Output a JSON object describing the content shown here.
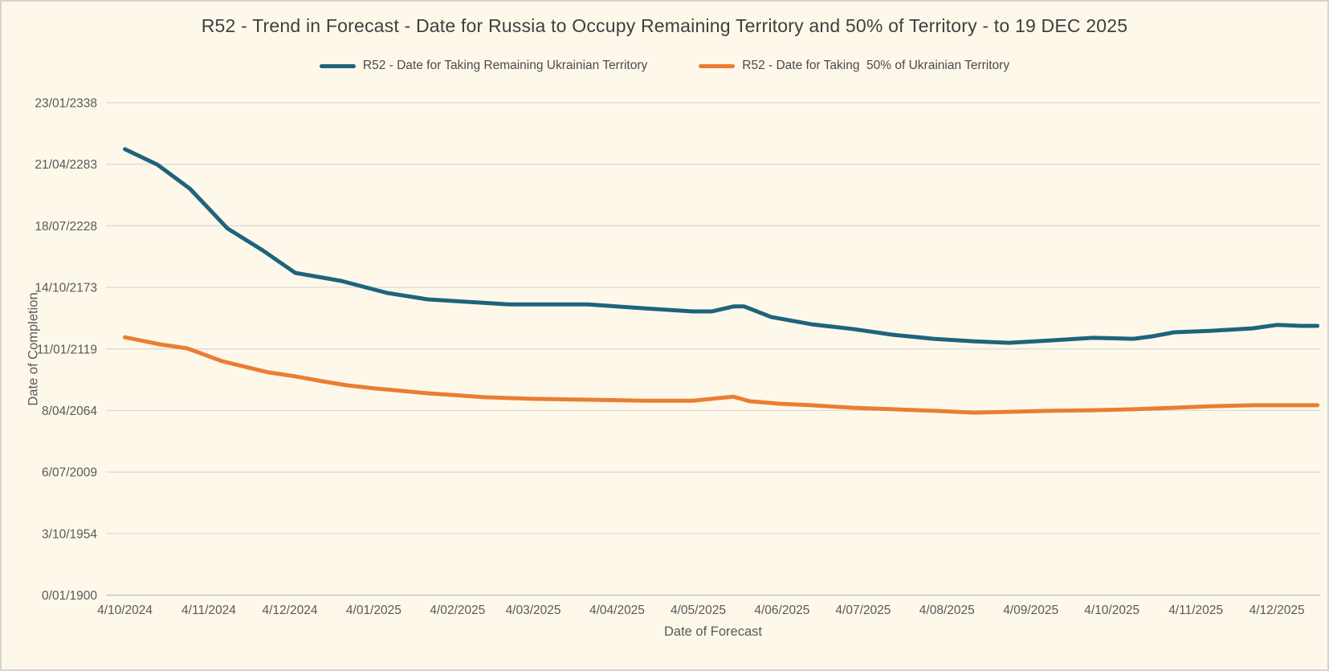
{
  "chart": {
    "title": "R52 - Trend in Forecast - Date for Russia to Occupy Remaining Territory and 50% of Territory - to 19 DEC 2025",
    "xlabel": "Date of Forecast",
    "ylabel": "Date of Completion",
    "legend": [
      {
        "label": "R52 - Date for Taking Remaining Ukrainian Territory",
        "color": "#1F637C"
      },
      {
        "label": "R52 - Date for Taking  50% of Ukrainian Territory",
        "color": "#EB7D33"
      }
    ],
    "colors": {
      "background": "#FDF8EA",
      "border": "#D7D4CE",
      "gridline": "#D9D7D2",
      "axis_line": "#C4C2BD",
      "tick_text": "#595959",
      "title_text": "#3F3F3F"
    }
  },
  "chart_data": {
    "type": "line",
    "title": "R52 - Trend in Forecast - Date for Russia to Occupy Remaining Territory and 50% of Territory - to 19 DEC 2025",
    "xlabel": "Date of Forecast",
    "ylabel": "Date of Completion",
    "grid": "horizontal-only",
    "legend_position": "top",
    "x_units": "days since first forecast (4/10/2024)",
    "y_units": "Excel serial days since 0/01/1900; year ~= 1900 + serial/365.25 (y-axis displays dates)",
    "x_domain": [
      -7,
      442
    ],
    "y_domain": [
      0,
      160000
    ],
    "x_ticks": [
      {
        "label": "4/10/2024",
        "d": 0
      },
      {
        "label": "4/11/2024",
        "d": 31
      },
      {
        "label": "4/12/2024",
        "d": 61
      },
      {
        "label": "4/01/2025",
        "d": 92
      },
      {
        "label": "4/02/2025",
        "d": 123
      },
      {
        "label": "4/03/2025",
        "d": 151
      },
      {
        "label": "4/04/2025",
        "d": 182
      },
      {
        "label": "4/05/2025",
        "d": 212
      },
      {
        "label": "4/06/2025",
        "d": 243
      },
      {
        "label": "4/07/2025",
        "d": 273
      },
      {
        "label": "4/08/2025",
        "d": 304
      },
      {
        "label": "4/09/2025",
        "d": 335
      },
      {
        "label": "4/10/2025",
        "d": 365
      },
      {
        "label": "4/11/2025",
        "d": 396
      },
      {
        "label": "4/12/2025",
        "d": 426
      }
    ],
    "y_ticks": [
      {
        "label": "23/01/2338",
        "serial": 160000
      },
      {
        "label": "21/04/2283",
        "serial": 140000
      },
      {
        "label": "18/07/2228",
        "serial": 120000
      },
      {
        "label": "14/10/2173",
        "serial": 100000
      },
      {
        "label": "11/01/2119",
        "serial": 80000
      },
      {
        "label": "8/04/2064",
        "serial": 60000
      },
      {
        "label": "6/07/2009",
        "serial": 40000
      },
      {
        "label": "3/10/1954",
        "serial": 20000
      },
      {
        "label": "0/01/1900",
        "serial": 0
      }
    ],
    "series": [
      {
        "id": "remaining-territory",
        "name": "R52 - Date for Taking Remaining Ukrainian Territory",
        "color": "#1F637C",
        "points": [
          [
            0,
            144900
          ],
          [
            12,
            139900
          ],
          [
            24,
            132100
          ],
          [
            38,
            119100
          ],
          [
            51,
            112000
          ],
          [
            63,
            104700
          ],
          [
            80,
            102100
          ],
          [
            97,
            98200
          ],
          [
            112,
            96100
          ],
          [
            127,
            95300
          ],
          [
            142,
            94500
          ],
          [
            157,
            94500
          ],
          [
            171,
            94500
          ],
          [
            192,
            93200
          ],
          [
            210,
            92200
          ],
          [
            217,
            92200
          ],
          [
            225,
            93800
          ],
          [
            229,
            93800
          ],
          [
            239,
            90400
          ],
          [
            254,
            88000
          ],
          [
            269,
            86500
          ],
          [
            284,
            84600
          ],
          [
            299,
            83300
          ],
          [
            314,
            82500
          ],
          [
            327,
            82000
          ],
          [
            343,
            82800
          ],
          [
            358,
            83600
          ],
          [
            373,
            83300
          ],
          [
            380,
            84100
          ],
          [
            388,
            85400
          ],
          [
            402,
            85900
          ],
          [
            417,
            86700
          ],
          [
            426,
            87800
          ],
          [
            435,
            87500
          ],
          [
            441,
            87500
          ]
        ]
      },
      {
        "id": "fifty-percent-territory",
        "name": "R52 - Date for Taking  50% of Ukrainian Territory",
        "color": "#EB7D33",
        "points": [
          [
            0,
            83800
          ],
          [
            13,
            81500
          ],
          [
            23,
            80200
          ],
          [
            28,
            78600
          ],
          [
            36,
            76000
          ],
          [
            43,
            74500
          ],
          [
            53,
            72400
          ],
          [
            63,
            71100
          ],
          [
            73,
            69500
          ],
          [
            82,
            68200
          ],
          [
            92,
            67200
          ],
          [
            102,
            66400
          ],
          [
            112,
            65600
          ],
          [
            133,
            64300
          ],
          [
            151,
            63800
          ],
          [
            171,
            63500
          ],
          [
            192,
            63200
          ],
          [
            210,
            63200
          ],
          [
            217,
            63800
          ],
          [
            225,
            64500
          ],
          [
            231,
            63000
          ],
          [
            242,
            62200
          ],
          [
            254,
            61700
          ],
          [
            269,
            60900
          ],
          [
            284,
            60400
          ],
          [
            299,
            59900
          ],
          [
            314,
            59300
          ],
          [
            328,
            59600
          ],
          [
            343,
            59900
          ],
          [
            358,
            60100
          ],
          [
            373,
            60400
          ],
          [
            388,
            60900
          ],
          [
            402,
            61400
          ],
          [
            417,
            61700
          ],
          [
            432,
            61700
          ],
          [
            441,
            61700
          ]
        ]
      }
    ]
  }
}
